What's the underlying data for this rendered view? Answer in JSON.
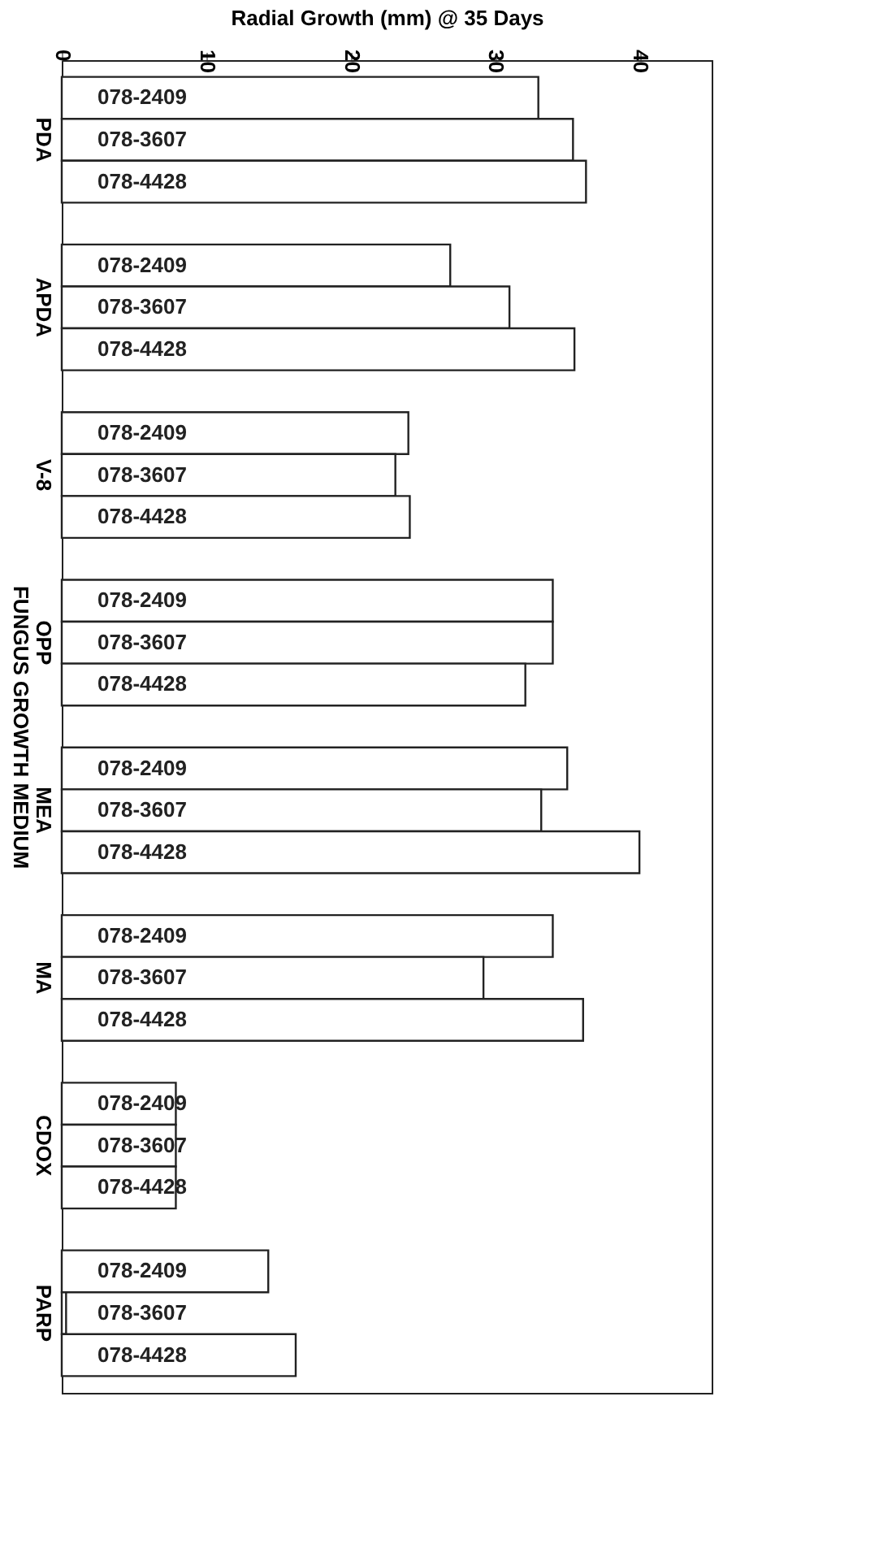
{
  "chart_data": {
    "type": "bar",
    "orientation": "horizontal",
    "xlabel": "Radial Growth (mm) @ 35 Days",
    "ylabel": "FUNGUS GROWTH MEDIUM",
    "categories": [
      "PDA",
      "APDA",
      "V-8",
      "OPP",
      "MEA",
      "MA",
      "CDOX",
      "PARP"
    ],
    "series": [
      {
        "name": "078-2409",
        "color": "#ffffff",
        "values": [
          33.0,
          26.9,
          24.0,
          34.0,
          35.0,
          34.0,
          7.9,
          14.3
        ]
      },
      {
        "name": "078-3607",
        "color": "#ffffff",
        "values": [
          35.4,
          31.0,
          23.1,
          34.0,
          33.2,
          29.2,
          7.9,
          0.3
        ]
      },
      {
        "name": "078-4428",
        "color": "#ffffff",
        "values": [
          36.3,
          35.5,
          24.1,
          32.1,
          40.0,
          36.1,
          7.9,
          16.2
        ]
      }
    ],
    "xlim": [
      0,
      45
    ],
    "xticks": [
      0,
      10,
      20,
      30,
      40
    ],
    "grid": false
  }
}
